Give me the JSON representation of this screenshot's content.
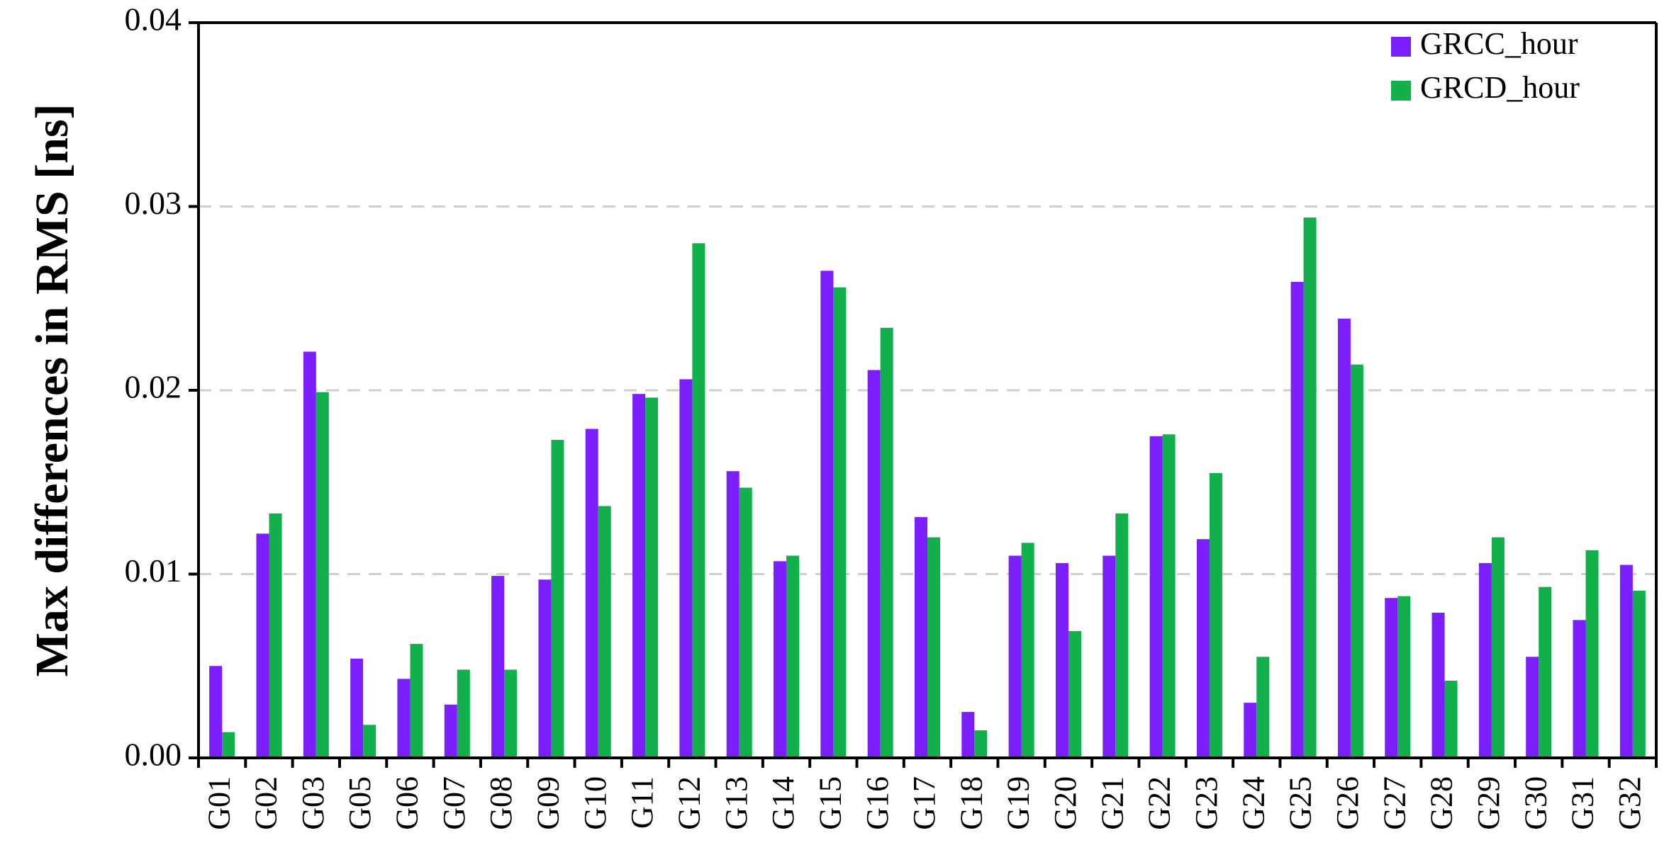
{
  "chart_data": {
    "type": "bar",
    "title": "",
    "xlabel": "",
    "ylabel": "Max differences in RMS [ns]",
    "ylim": [
      0,
      0.04
    ],
    "yticks": [
      "0.00",
      "0.01",
      "0.02",
      "0.03",
      "0.04"
    ],
    "grid": "horizontal-dashed",
    "legend_position": "top-right",
    "categories": [
      "G01",
      "G02",
      "G03",
      "G05",
      "G06",
      "G07",
      "G08",
      "G09",
      "G10",
      "G11",
      "G12",
      "G13",
      "G14",
      "G15",
      "G16",
      "G17",
      "G18",
      "G19",
      "G20",
      "G21",
      "G22",
      "G23",
      "G24",
      "G25",
      "G26",
      "G27",
      "G28",
      "G29",
      "G30",
      "G31",
      "G32"
    ],
    "series": [
      {
        "name": "GRCC_hour",
        "color": "#7b1fff",
        "values": [
          0.005,
          0.0122,
          0.0221,
          0.0054,
          0.0043,
          0.0029,
          0.0099,
          0.0097,
          0.0179,
          0.0198,
          0.0206,
          0.0156,
          0.0107,
          0.0265,
          0.0211,
          0.0131,
          0.0025,
          0.011,
          0.0106,
          0.011,
          0.0175,
          0.0119,
          0.003,
          0.0259,
          0.0239,
          0.0087,
          0.0079,
          0.0106,
          0.0055,
          0.0075,
          0.0105
        ]
      },
      {
        "name": "GRCD_hour",
        "color": "#12b04a",
        "values": [
          0.0014,
          0.0133,
          0.0199,
          0.0018,
          0.0062,
          0.0048,
          0.0048,
          0.0173,
          0.0137,
          0.0196,
          0.028,
          0.0147,
          0.011,
          0.0256,
          0.0234,
          0.012,
          0.0015,
          0.0117,
          0.0069,
          0.0133,
          0.0176,
          0.0155,
          0.0055,
          0.0294,
          0.0214,
          0.0088,
          0.0042,
          0.012,
          0.0093,
          0.0113,
          0.0091
        ]
      }
    ]
  }
}
